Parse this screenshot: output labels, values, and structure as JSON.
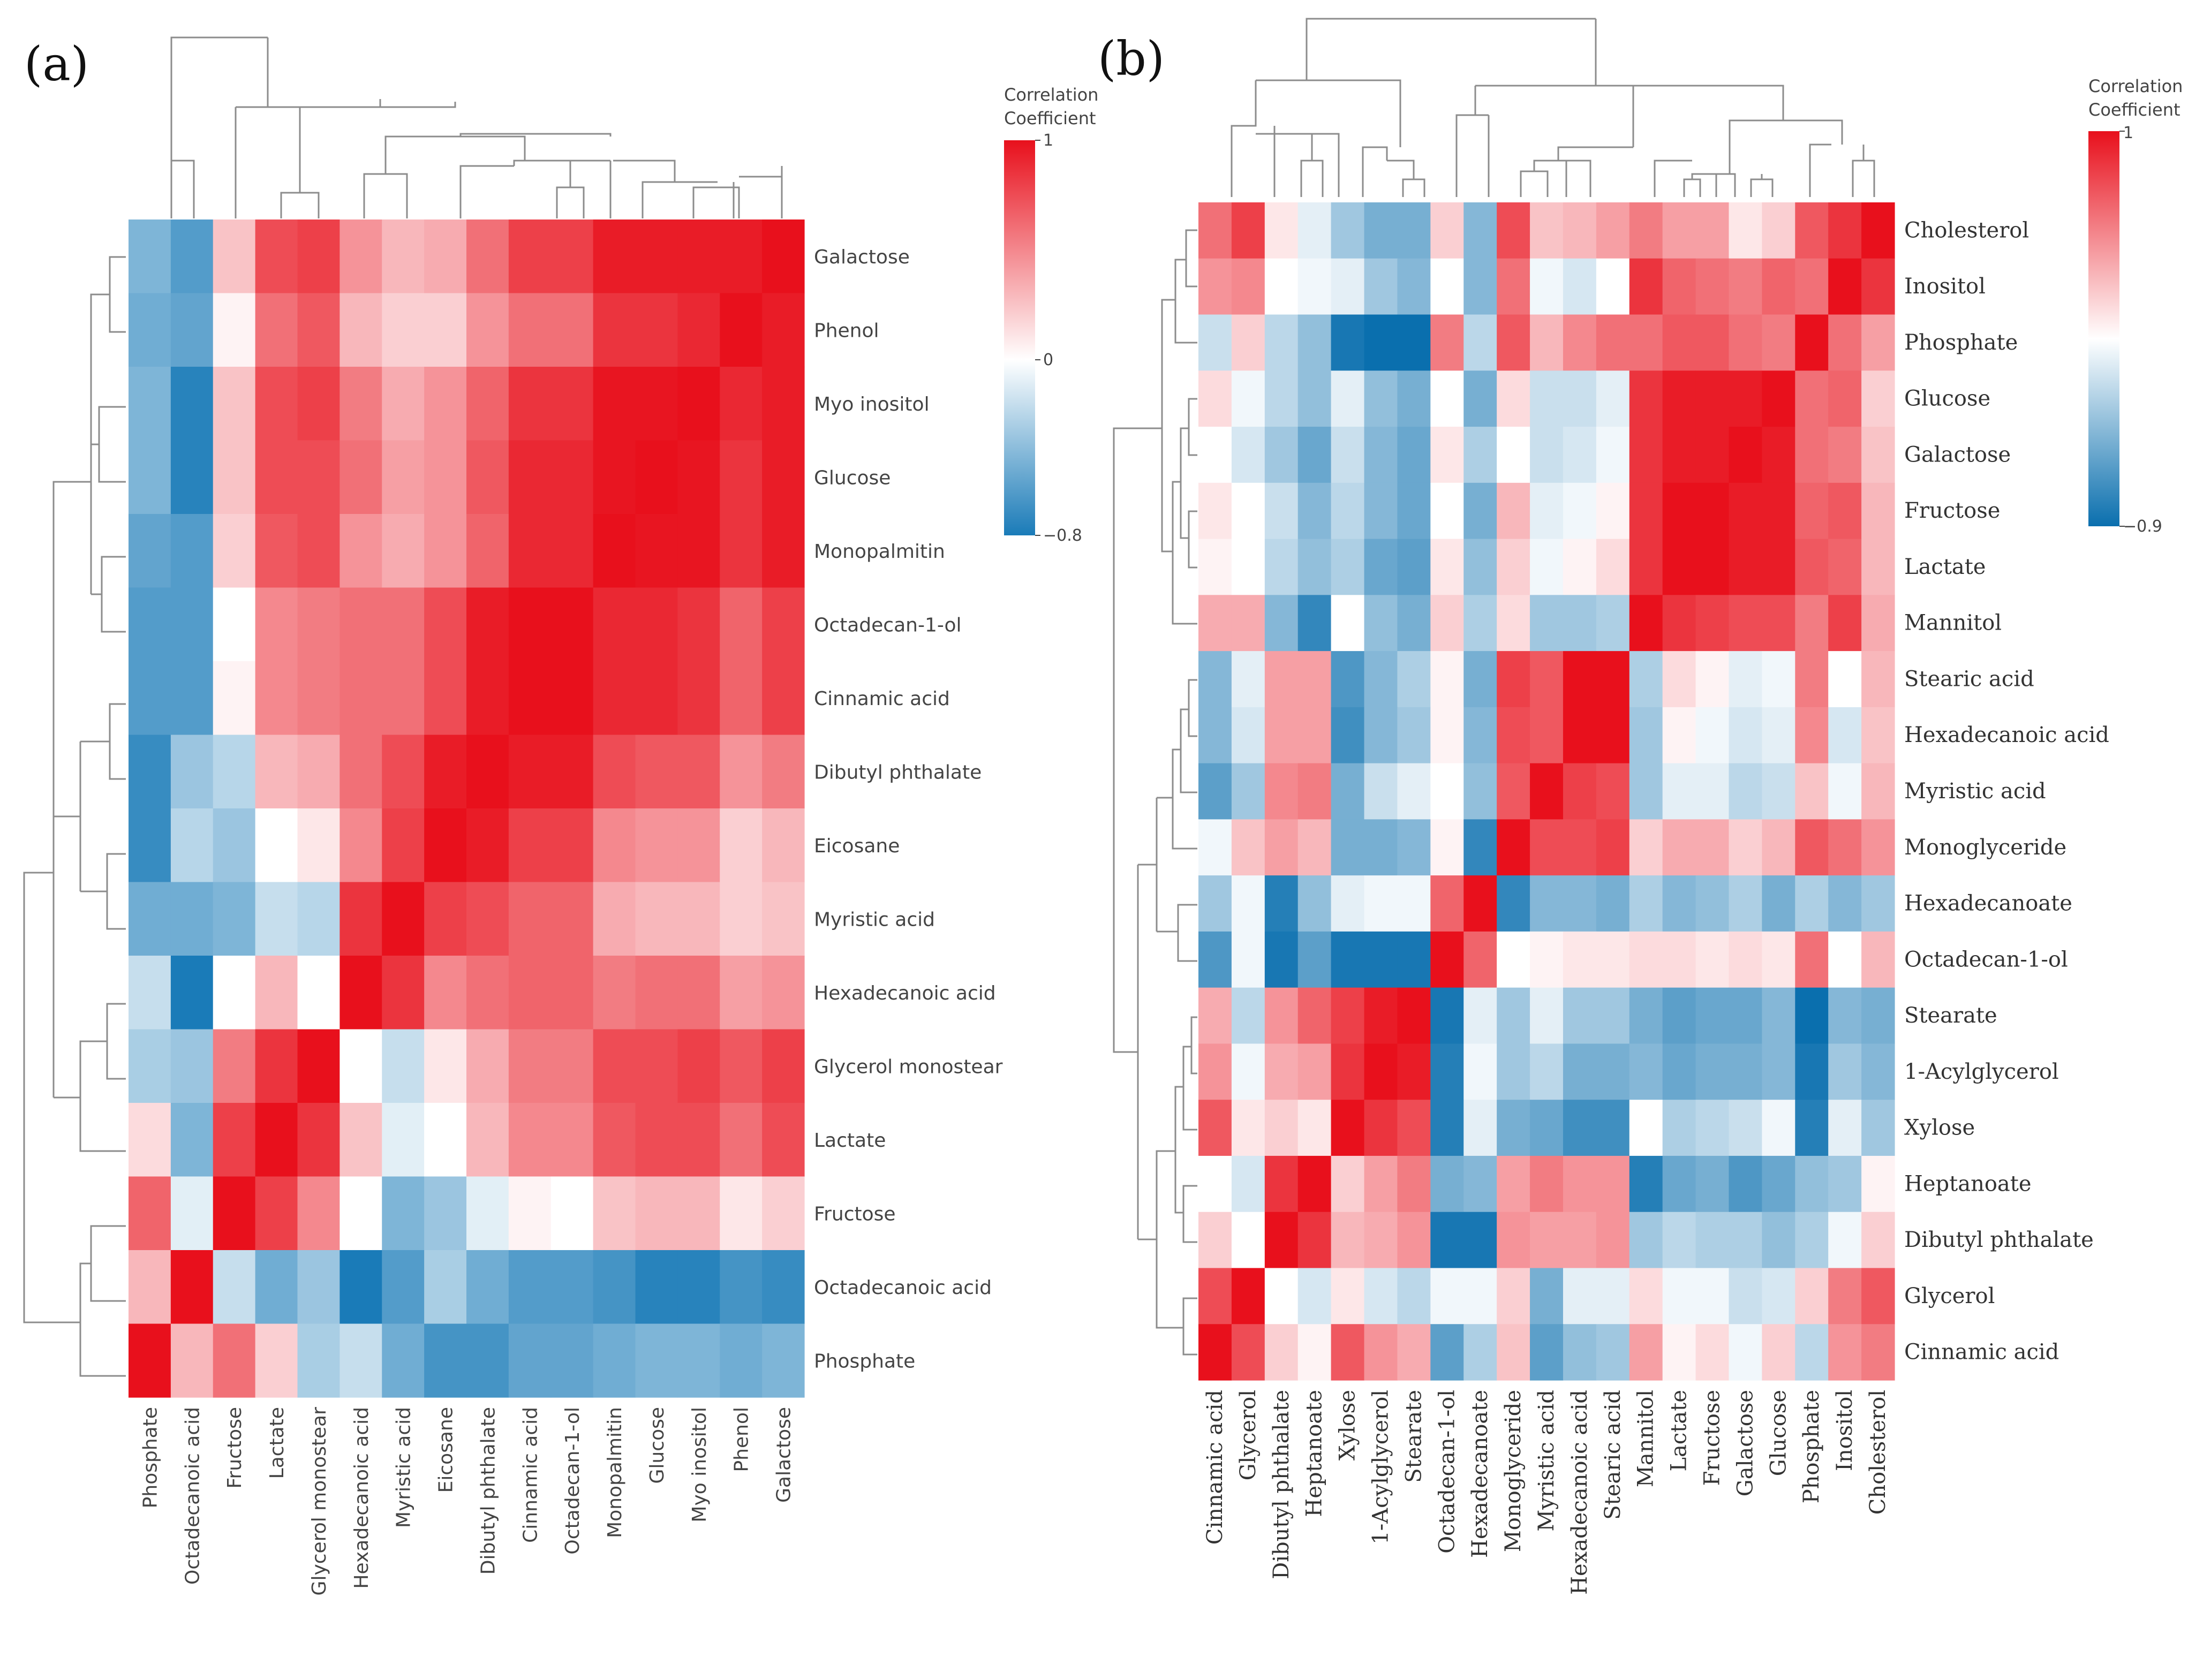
{
  "chart_data": [
    {
      "type": "heatmap",
      "panel_label": "(a)",
      "rows": [
        "Galactose",
        "Phenol",
        "Myo inositol",
        "Glucose",
        "Monopalmitin",
        "Octadecan-1-ol",
        "Cinnamic acid",
        "Dibutyl phthalate",
        "Eicosane",
        "Myristic acid",
        "Hexadecanoic acid",
        "Glycerol monostear",
        "Lactate",
        "Fructose",
        "Octadecanoic acid",
        "Phosphate"
      ],
      "columns": [
        "Phosphate",
        "Octadecanoic acid",
        "Fructose",
        "Lactate",
        "Glycerol monostear",
        "Hexadecanoic acid",
        "Myristic acid",
        "Eicosane",
        "Dibutyl phthalate",
        "Cinnamic acid",
        "Octadecan-1-ol",
        "Monopalmitin",
        "Glucose",
        "Myo inositol",
        "Phenol",
        "Galactose"
      ],
      "values": [
        [
          -0.45,
          -0.6,
          0.25,
          0.75,
          0.8,
          0.45,
          0.3,
          0.35,
          0.6,
          0.8,
          0.8,
          0.95,
          0.95,
          0.95,
          0.95,
          1.0
        ],
        [
          -0.5,
          -0.55,
          0.05,
          0.6,
          0.7,
          0.3,
          0.2,
          0.2,
          0.45,
          0.6,
          0.6,
          0.85,
          0.85,
          0.9,
          1.0,
          0.95
        ],
        [
          -0.45,
          -0.75,
          0.25,
          0.75,
          0.8,
          0.55,
          0.35,
          0.45,
          0.65,
          0.85,
          0.85,
          0.98,
          0.98,
          1.0,
          0.9,
          0.95
        ],
        [
          -0.45,
          -0.75,
          0.25,
          0.75,
          0.75,
          0.6,
          0.4,
          0.45,
          0.7,
          0.9,
          0.9,
          0.98,
          1.0,
          0.98,
          0.85,
          0.95
        ],
        [
          -0.55,
          -0.6,
          0.2,
          0.7,
          0.75,
          0.45,
          0.35,
          0.45,
          0.65,
          0.9,
          0.9,
          1.0,
          0.98,
          0.98,
          0.85,
          0.95
        ],
        [
          -0.6,
          -0.6,
          0.0,
          0.5,
          0.55,
          0.6,
          0.6,
          0.75,
          0.95,
          1.0,
          1.0,
          0.9,
          0.9,
          0.85,
          0.65,
          0.8
        ],
        [
          -0.6,
          -0.6,
          0.05,
          0.5,
          0.55,
          0.6,
          0.6,
          0.75,
          0.95,
          1.0,
          1.0,
          0.9,
          0.9,
          0.85,
          0.65,
          0.8
        ],
        [
          -0.7,
          -0.35,
          -0.25,
          0.3,
          0.35,
          0.6,
          0.75,
          0.95,
          1.0,
          0.95,
          0.95,
          0.75,
          0.7,
          0.7,
          0.45,
          0.55
        ],
        [
          -0.7,
          -0.25,
          -0.35,
          0.0,
          0.1,
          0.5,
          0.8,
          1.0,
          0.95,
          0.8,
          0.8,
          0.5,
          0.45,
          0.45,
          0.2,
          0.3
        ],
        [
          -0.5,
          -0.5,
          -0.45,
          -0.2,
          -0.25,
          0.85,
          1.0,
          0.8,
          0.75,
          0.65,
          0.65,
          0.35,
          0.3,
          0.3,
          0.2,
          0.25
        ],
        [
          -0.2,
          -0.85,
          0.0,
          0.3,
          0.0,
          1.0,
          0.85,
          0.5,
          0.6,
          0.65,
          0.65,
          0.55,
          0.6,
          0.6,
          0.4,
          0.45
        ],
        [
          -0.3,
          -0.35,
          0.55,
          0.85,
          1.0,
          0.0,
          -0.2,
          0.1,
          0.35,
          0.55,
          0.55,
          0.75,
          0.75,
          0.8,
          0.7,
          0.8
        ],
        [
          0.15,
          -0.45,
          0.8,
          1.0,
          0.85,
          0.25,
          -0.1,
          0.0,
          0.3,
          0.5,
          0.5,
          0.7,
          0.75,
          0.75,
          0.6,
          0.75
        ],
        [
          0.65,
          -0.1,
          1.0,
          0.8,
          0.5,
          0.0,
          -0.45,
          -0.35,
          -0.1,
          0.05,
          0.0,
          0.25,
          0.3,
          0.3,
          0.1,
          0.2
        ],
        [
          0.3,
          1.0,
          -0.2,
          -0.5,
          -0.35,
          -0.85,
          -0.6,
          -0.3,
          -0.5,
          -0.6,
          -0.6,
          -0.65,
          -0.75,
          -0.75,
          -0.65,
          -0.7
        ],
        [
          1.0,
          0.3,
          0.6,
          0.2,
          -0.3,
          -0.2,
          -0.5,
          -0.65,
          -0.65,
          -0.55,
          -0.55,
          -0.5,
          -0.45,
          -0.45,
          -0.5,
          -0.45
        ]
      ],
      "legend": {
        "title": "Correlation\nCoefficient",
        "max": 1,
        "mid": 0,
        "min": -0.8,
        "max_label": "1",
        "mid_label": "0",
        "min_label": "−0.8"
      },
      "colormap": {
        "negative": "#1a7bb8",
        "zero": "#ffffff",
        "positive": "#e8101c"
      }
    },
    {
      "type": "heatmap",
      "panel_label": "(b)",
      "rows": [
        "Cholesterol",
        "Inositol",
        "Phosphate",
        "Glucose",
        "Galactose",
        "Fructose",
        "Lactate",
        "Mannitol",
        "Stearic acid",
        "Hexadecanoic acid",
        "Myristic acid",
        "Monoglyceride",
        "Hexadecanoate",
        "Octadecan-1-ol",
        "Stearate",
        "1-Acylglycerol",
        "Xylose",
        "Heptanoate",
        "Dibutyl phthalate",
        "Glycerol",
        "Cinnamic acid"
      ],
      "columns": [
        "Cinnamic acid",
        "Glycerol",
        "Dibutyl phthalate",
        "Heptanoate",
        "Xylose",
        "1-Acylglycerol",
        "Stearate",
        "Octadecan-1-ol",
        "Hexadecanoate",
        "Monoglyceride",
        "Myristic acid",
        "Hexadecanoic acid",
        "Stearic acid",
        "Mannitol",
        "Lactate",
        "Fructose",
        "Galactose",
        "Glucose",
        "Phosphate",
        "Inositol",
        "Cholesterol"
      ],
      "values": [
        [
          0.6,
          0.8,
          0.1,
          -0.1,
          -0.35,
          -0.5,
          -0.5,
          0.2,
          -0.45,
          0.75,
          0.25,
          0.3,
          0.4,
          0.55,
          0.4,
          0.4,
          0.1,
          0.2,
          0.7,
          0.85,
          1.0
        ],
        [
          0.45,
          0.5,
          0.0,
          -0.05,
          -0.1,
          -0.35,
          -0.45,
          0.0,
          -0.45,
          0.6,
          -0.05,
          -0.15,
          0.0,
          0.85,
          0.65,
          0.6,
          0.55,
          0.65,
          0.6,
          1.0,
          0.85
        ],
        [
          -0.2,
          0.2,
          -0.25,
          -0.4,
          -0.85,
          -0.9,
          -0.9,
          0.55,
          -0.25,
          0.7,
          0.3,
          0.5,
          0.6,
          0.6,
          0.7,
          0.7,
          0.6,
          0.55,
          1.0,
          0.6,
          0.4
        ],
        [
          0.15,
          -0.05,
          -0.25,
          -0.4,
          -0.1,
          -0.4,
          -0.5,
          0.0,
          -0.5,
          0.15,
          -0.2,
          -0.2,
          -0.1,
          0.85,
          0.95,
          0.95,
          0.95,
          1.0,
          0.6,
          0.65,
          0.2
        ],
        [
          0.0,
          -0.15,
          -0.35,
          -0.55,
          -0.2,
          -0.45,
          -0.55,
          0.1,
          -0.3,
          0.0,
          -0.2,
          -0.15,
          -0.05,
          0.85,
          0.95,
          0.95,
          1.0,
          0.95,
          0.6,
          0.55,
          0.25
        ],
        [
          0.1,
          0.0,
          -0.2,
          -0.45,
          -0.25,
          -0.45,
          -0.55,
          0.0,
          -0.5,
          0.3,
          -0.1,
          -0.05,
          0.05,
          0.85,
          1.0,
          1.0,
          0.95,
          0.95,
          0.65,
          0.7,
          0.3
        ],
        [
          0.05,
          0.0,
          -0.25,
          -0.4,
          -0.3,
          -0.55,
          -0.6,
          0.1,
          -0.4,
          0.2,
          -0.05,
          0.05,
          0.15,
          0.85,
          1.0,
          1.0,
          0.95,
          0.95,
          0.7,
          0.65,
          0.3
        ],
        [
          0.35,
          0.35,
          -0.45,
          -0.75,
          0.0,
          -0.4,
          -0.5,
          0.2,
          -0.3,
          0.15,
          -0.35,
          -0.35,
          -0.3,
          1.0,
          0.85,
          0.8,
          0.75,
          0.75,
          0.55,
          0.8,
          0.35
        ],
        [
          -0.45,
          -0.1,
          0.4,
          0.4,
          -0.65,
          -0.45,
          -0.3,
          0.05,
          -0.5,
          0.8,
          0.7,
          1.0,
          1.0,
          -0.3,
          0.15,
          0.05,
          -0.1,
          -0.05,
          0.55,
          0.0,
          0.3
        ],
        [
          -0.45,
          -0.15,
          0.4,
          0.4,
          -0.7,
          -0.45,
          -0.35,
          0.05,
          -0.45,
          0.75,
          0.7,
          1.0,
          1.0,
          -0.35,
          0.05,
          -0.05,
          -0.15,
          -0.1,
          0.5,
          -0.15,
          0.25
        ],
        [
          -0.6,
          -0.35,
          0.5,
          0.55,
          -0.5,
          -0.2,
          -0.1,
          0.0,
          -0.4,
          0.7,
          1.0,
          0.8,
          0.75,
          -0.35,
          -0.1,
          -0.1,
          -0.25,
          -0.2,
          0.25,
          -0.05,
          0.3
        ],
        [
          -0.05,
          0.25,
          0.4,
          0.3,
          -0.5,
          -0.5,
          -0.45,
          0.05,
          -0.75,
          1.0,
          0.75,
          0.75,
          0.8,
          0.2,
          0.35,
          0.35,
          0.2,
          0.3,
          0.7,
          0.6,
          0.45
        ],
        [
          -0.35,
          -0.05,
          -0.8,
          -0.4,
          -0.1,
          -0.05,
          -0.05,
          0.65,
          1.0,
          -0.75,
          -0.45,
          -0.45,
          -0.5,
          -0.3,
          -0.45,
          -0.4,
          -0.3,
          -0.5,
          -0.3,
          -0.45,
          -0.35
        ],
        [
          -0.65,
          -0.05,
          -0.85,
          -0.6,
          -0.85,
          -0.85,
          -0.85,
          1.0,
          0.65,
          0.0,
          0.05,
          0.1,
          0.1,
          0.15,
          0.15,
          0.1,
          0.15,
          0.1,
          0.6,
          0.0,
          0.3
        ],
        [
          0.35,
          -0.25,
          0.45,
          0.65,
          0.8,
          0.95,
          1.0,
          -0.85,
          -0.1,
          -0.35,
          -0.1,
          -0.35,
          -0.35,
          -0.5,
          -0.6,
          -0.55,
          -0.55,
          -0.45,
          -0.9,
          -0.45,
          -0.5
        ],
        [
          0.45,
          -0.05,
          0.35,
          0.4,
          0.85,
          1.0,
          0.95,
          -0.8,
          -0.05,
          -0.35,
          -0.25,
          -0.5,
          -0.5,
          -0.45,
          -0.55,
          -0.5,
          -0.5,
          -0.45,
          -0.85,
          -0.35,
          -0.45
        ],
        [
          0.7,
          0.1,
          0.2,
          0.1,
          1.0,
          0.85,
          0.75,
          -0.8,
          -0.1,
          -0.5,
          -0.55,
          -0.7,
          -0.7,
          0.0,
          -0.3,
          -0.25,
          -0.2,
          -0.05,
          -0.8,
          -0.1,
          -0.35
        ],
        [
          0.0,
          -0.15,
          0.85,
          1.0,
          0.2,
          0.4,
          0.55,
          -0.5,
          -0.45,
          0.4,
          0.55,
          0.45,
          0.45,
          -0.8,
          -0.55,
          -0.5,
          -0.65,
          -0.55,
          -0.4,
          -0.35,
          0.05
        ],
        [
          0.2,
          0.0,
          1.0,
          0.85,
          0.3,
          0.35,
          0.45,
          -0.85,
          -0.85,
          0.45,
          0.4,
          0.4,
          0.45,
          -0.35,
          -0.25,
          -0.3,
          -0.3,
          -0.4,
          -0.3,
          -0.05,
          0.2
        ],
        [
          0.75,
          1.0,
          0.0,
          -0.15,
          0.1,
          -0.15,
          -0.25,
          -0.05,
          -0.05,
          0.2,
          -0.5,
          -0.1,
          -0.1,
          0.15,
          -0.05,
          -0.05,
          -0.2,
          -0.15,
          0.2,
          0.55,
          0.7
        ],
        [
          1.0,
          0.75,
          0.2,
          0.05,
          0.7,
          0.45,
          0.35,
          -0.6,
          -0.3,
          0.25,
          -0.6,
          -0.4,
          -0.35,
          0.4,
          0.05,
          0.15,
          -0.05,
          0.2,
          -0.25,
          0.45,
          0.55
        ]
      ],
      "legend": {
        "title": "Correlation\nCoefficient",
        "max": 1,
        "mid": 0,
        "min": -0.9,
        "max_label": "1",
        "min_label": "−0.9"
      },
      "colormap": {
        "negative": "#0a6fae",
        "zero": "#ffffff",
        "positive": "#e8101c"
      }
    }
  ]
}
